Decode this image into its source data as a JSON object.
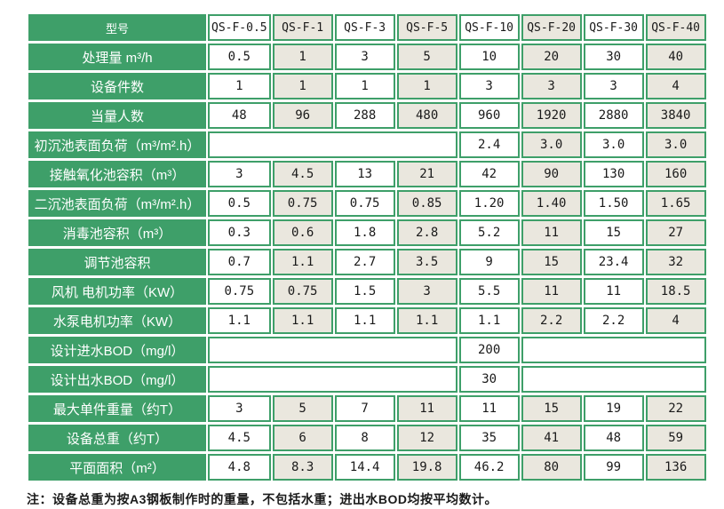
{
  "colors": {
    "table_green": "#3e9f69",
    "stripe_beige": "#eae7de",
    "cell_white": "#ffffff",
    "data_text": "#1a1a1a",
    "label_text": "#ffffff"
  },
  "table": {
    "corner_label": "型号",
    "models": [
      "QS-F-0.5",
      "QS-F-1",
      "QS-F-3",
      "QS-F-5",
      "QS-F-10",
      "QS-F-20",
      "QS-F-30",
      "QS-F-40"
    ],
    "rows": [
      {
        "label": "处理量 m³/h",
        "cells": [
          {
            "v": "0.5"
          },
          {
            "v": "1"
          },
          {
            "v": "3"
          },
          {
            "v": "5"
          },
          {
            "v": "10"
          },
          {
            "v": "20"
          },
          {
            "v": "30"
          },
          {
            "v": "40"
          }
        ]
      },
      {
        "label": "设备件数",
        "cells": [
          {
            "v": "1"
          },
          {
            "v": "1"
          },
          {
            "v": "1"
          },
          {
            "v": "1"
          },
          {
            "v": "3"
          },
          {
            "v": "3"
          },
          {
            "v": "3"
          },
          {
            "v": "4"
          }
        ]
      },
      {
        "label": "当量人数",
        "cells": [
          {
            "v": "48"
          },
          {
            "v": "96"
          },
          {
            "v": "288"
          },
          {
            "v": "480"
          },
          {
            "v": "960"
          },
          {
            "v": "1920"
          },
          {
            "v": "2880"
          },
          {
            "v": "3840"
          }
        ]
      },
      {
        "label": "初沉池表面负荷（m³/m².h）",
        "cells": [
          {
            "v": "",
            "span": 4
          },
          {
            "v": "2.4"
          },
          {
            "v": "3.0"
          },
          {
            "v": "3.0"
          },
          {
            "v": "3.0"
          }
        ]
      },
      {
        "label": "接触氧化池容积（m³）",
        "cells": [
          {
            "v": "3"
          },
          {
            "v": "4.5"
          },
          {
            "v": "13"
          },
          {
            "v": "21"
          },
          {
            "v": "42"
          },
          {
            "v": "90"
          },
          {
            "v": "130"
          },
          {
            "v": "160"
          }
        ]
      },
      {
        "label": "二沉池表面负荷（m³/m².h）",
        "cells": [
          {
            "v": "0.5"
          },
          {
            "v": "0.75"
          },
          {
            "v": "0.75"
          },
          {
            "v": "0.85"
          },
          {
            "v": "1.20"
          },
          {
            "v": "1.40"
          },
          {
            "v": "1.50"
          },
          {
            "v": "1.65"
          }
        ]
      },
      {
        "label": "消毒池容积（m³）",
        "cells": [
          {
            "v": "0.3"
          },
          {
            "v": "0.6"
          },
          {
            "v": "1.8"
          },
          {
            "v": "2.8"
          },
          {
            "v": "5.2"
          },
          {
            "v": "11"
          },
          {
            "v": "15"
          },
          {
            "v": "27"
          }
        ]
      },
      {
        "label": "调节池容积",
        "cells": [
          {
            "v": "0.7"
          },
          {
            "v": "1.1"
          },
          {
            "v": "2.7"
          },
          {
            "v": "3.5"
          },
          {
            "v": "9"
          },
          {
            "v": "15"
          },
          {
            "v": "23.4"
          },
          {
            "v": "32"
          }
        ]
      },
      {
        "label": "风机 电机功率（KW）",
        "cells": [
          {
            "v": "0.75"
          },
          {
            "v": "0.75"
          },
          {
            "v": "1.5"
          },
          {
            "v": "3"
          },
          {
            "v": "5.5"
          },
          {
            "v": "11"
          },
          {
            "v": "11"
          },
          {
            "v": "18.5"
          }
        ]
      },
      {
        "label": "水泵电机功率（KW）",
        "cells": [
          {
            "v": "1.1"
          },
          {
            "v": "1.1"
          },
          {
            "v": "1.1"
          },
          {
            "v": "1.1"
          },
          {
            "v": "1.1"
          },
          {
            "v": "2.2"
          },
          {
            "v": "2.2"
          },
          {
            "v": "4"
          }
        ]
      },
      {
        "label": "设计进水BOD（mg/l）",
        "cells": [
          {
            "v": "",
            "span": 4
          },
          {
            "v": "200"
          },
          {
            "v": "",
            "span": 3
          }
        ]
      },
      {
        "label": "设计出水BOD（mg/l）",
        "cells": [
          {
            "v": "",
            "span": 4
          },
          {
            "v": "30"
          },
          {
            "v": "",
            "span": 3
          }
        ]
      },
      {
        "label": "最大单件重量（约T）",
        "cells": [
          {
            "v": "3"
          },
          {
            "v": "5"
          },
          {
            "v": "7"
          },
          {
            "v": "11"
          },
          {
            "v": "11"
          },
          {
            "v": "15"
          },
          {
            "v": "19"
          },
          {
            "v": "22"
          }
        ]
      },
      {
        "label": "设备总重（约T）",
        "cells": [
          {
            "v": "4.5"
          },
          {
            "v": "6"
          },
          {
            "v": "8"
          },
          {
            "v": "12"
          },
          {
            "v": "35"
          },
          {
            "v": "41"
          },
          {
            "v": "48"
          },
          {
            "v": "59"
          }
        ]
      },
      {
        "label": "平面面积（m²）",
        "cells": [
          {
            "v": "4.8"
          },
          {
            "v": "8.3"
          },
          {
            "v": "14.4"
          },
          {
            "v": "19.8"
          },
          {
            "v": "46.2"
          },
          {
            "v": "80"
          },
          {
            "v": "99"
          },
          {
            "v": "136"
          }
        ]
      }
    ]
  },
  "note": "注：设备总重为按A3钢板制作时的重量，不包括水重；进出水BOD均按平均数计。"
}
